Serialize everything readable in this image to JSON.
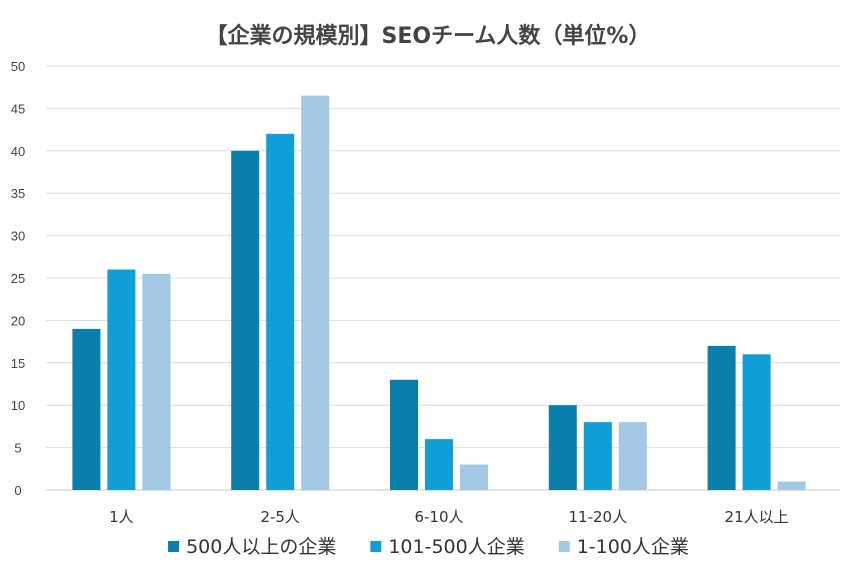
{
  "chart_data": {
    "type": "bar",
    "title": "【企業の規模別】SEOチーム人数（単位%）",
    "xlabel": "",
    "ylabel": "",
    "categories": [
      "1人",
      "2-5人",
      "6-10人",
      "11-20人",
      "21人以上"
    ],
    "ylim": [
      0,
      50
    ],
    "y_ticks": [
      "0",
      "5",
      "10",
      "15",
      "20",
      "25",
      "30",
      "35",
      "40",
      "45",
      "50"
    ],
    "grid": true,
    "legend_position": "bottom",
    "series": [
      {
        "name": "500人以上の企業",
        "color": "#0b7fab",
        "values": [
          19,
          40,
          13,
          10,
          17
        ]
      },
      {
        "name": "101-500人企業",
        "color": "#0f9ed5",
        "values": [
          26,
          42,
          6,
          8,
          16
        ]
      },
      {
        "name": "1-100人企業",
        "color": "#a2c8e4",
        "values": [
          25.5,
          46.5,
          3,
          8,
          1
        ]
      }
    ]
  }
}
